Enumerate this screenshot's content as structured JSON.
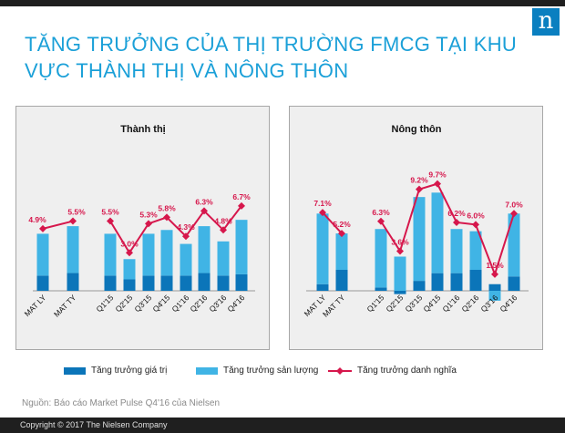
{
  "title": "TĂNG TRƯỞNG CỦA THỊ TRƯỜNG FMCG TẠI KHU VỰC THÀNH THỊ VÀ NÔNG THÔN",
  "logo_text": "n",
  "legend": {
    "value": "Tăng trưởng giá trị",
    "volume": "Tăng trưởng sản lượng",
    "nominal": "Tăng trưởng danh nghĩa"
  },
  "colors": {
    "value": "#0b75b9",
    "volume": "#40b4e5",
    "nominal": "#d6174c",
    "title": "#1ba0d8"
  },
  "source": "Nguồn: Báo cáo Market Pulse Q4'16 của Nielsen",
  "copyright": "Copyright © 2017 The Nielsen Company",
  "chart_data": [
    {
      "type": "bar",
      "title": "Thành thị",
      "categories": [
        "MAT LY",
        "MAT TY",
        "Q1'15",
        "Q2'15",
        "Q3'15",
        "Q4'15",
        "Q1'16",
        "Q2'16",
        "Q3'16",
        "Q4'16"
      ],
      "series": [
        {
          "name": "Tăng trưởng giá trị",
          "values": [
            1.2,
            1.4,
            1.2,
            0.9,
            1.2,
            1.2,
            1.2,
            1.4,
            1.2,
            1.3
          ]
        },
        {
          "name": "Tăng trưởng sản lượng",
          "values": [
            3.3,
            3.7,
            3.3,
            1.6,
            3.3,
            3.6,
            2.5,
            3.7,
            2.7,
            4.3
          ]
        },
        {
          "name": "Tăng trưởng danh nghĩa",
          "values": [
            4.9,
            5.5,
            5.5,
            3.0,
            5.3,
            5.8,
            4.3,
            6.3,
            4.8,
            6.7
          ]
        }
      ],
      "data_labels": [
        "4.9%",
        "5.5%",
        "5.5%",
        "3.0%",
        "5.3%",
        "5.8%",
        "4.3%",
        "6.3%",
        "4.8%",
        "6.7%"
      ]
    },
    {
      "type": "bar",
      "title": "Nông thôn",
      "categories": [
        "MAT LY",
        "MAT TY",
        "Q1'15",
        "Q2'15",
        "Q3'15",
        "Q4'15",
        "Q1'16",
        "Q2'16",
        "Q3'16",
        "Q4'16"
      ],
      "series": [
        {
          "name": "Tăng trưởng giá trị",
          "values": [
            0.6,
            1.9,
            0.3,
            -0.3,
            0.9,
            1.6,
            1.6,
            1.9,
            0.6,
            1.3
          ]
        },
        {
          "name": "Tăng trưởng sản lượng",
          "values": [
            6.4,
            3.3,
            5.3,
            3.1,
            7.6,
            7.3,
            4.0,
            3.5,
            -0.9,
            5.7
          ]
        },
        {
          "name": "Tăng trưởng danh nghĩa",
          "values": [
            7.1,
            5.2,
            6.3,
            3.6,
            9.2,
            9.7,
            6.2,
            6.0,
            1.5,
            7.0
          ]
        }
      ],
      "data_labels": [
        "7.1%",
        "5.2%",
        "6.3%",
        "3.6%",
        "9.2%",
        "9.7%",
        "6.2%",
        "6.0%",
        "1.5%",
        "7.0%"
      ]
    }
  ]
}
